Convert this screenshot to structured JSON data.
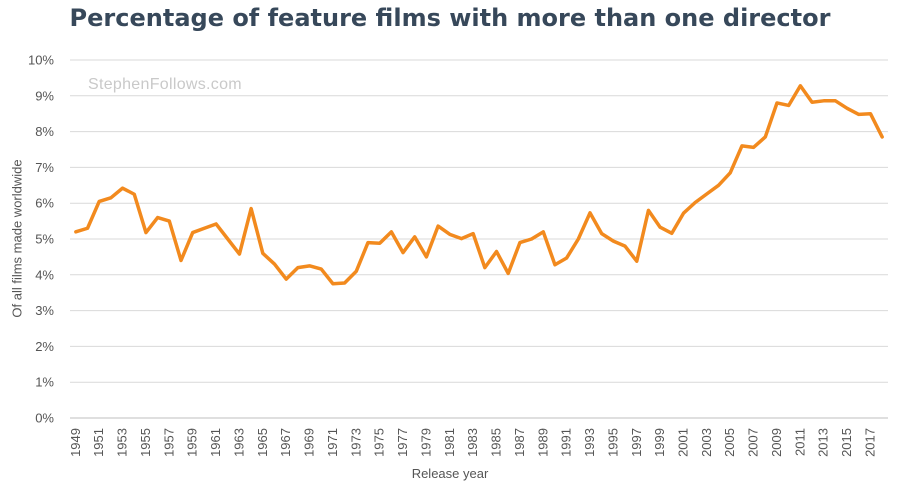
{
  "chart_data": {
    "type": "line",
    "title": "Percentage of feature films with more than one director",
    "xlabel": "Release year",
    "ylabel": "Of all films made worldwide",
    "watermark": "StephenFollows.com",
    "ylim": [
      0,
      10
    ],
    "y_ticks": [
      "0%",
      "1%",
      "2%",
      "3%",
      "4%",
      "5%",
      "6%",
      "7%",
      "8%",
      "9%",
      "10%"
    ],
    "x_tick_labels": [
      "1949",
      "1951",
      "1953",
      "1955",
      "1957",
      "1959",
      "1961",
      "1963",
      "1965",
      "1967",
      "1969",
      "1971",
      "1973",
      "1975",
      "1977",
      "1979",
      "1981",
      "1983",
      "1985",
      "1987",
      "1989",
      "1991",
      "1993",
      "1995",
      "1997",
      "1999",
      "2001",
      "2003",
      "2005",
      "2007",
      "2009",
      "2011",
      "2013",
      "2015",
      "2017"
    ],
    "grid": true,
    "line_color": "#f28a1e",
    "grid_color": "#d9d9d9",
    "title_color": "#37485a",
    "x": [
      1949,
      1950,
      1951,
      1952,
      1953,
      1954,
      1955,
      1956,
      1957,
      1958,
      1959,
      1960,
      1961,
      1962,
      1963,
      1964,
      1965,
      1966,
      1967,
      1968,
      1969,
      1970,
      1971,
      1972,
      1973,
      1974,
      1975,
      1976,
      1977,
      1978,
      1979,
      1980,
      1981,
      1982,
      1983,
      1984,
      1985,
      1986,
      1987,
      1988,
      1989,
      1990,
      1991,
      1992,
      1993,
      1994,
      1995,
      1996,
      1997,
      1998,
      1999,
      2000,
      2001,
      2002,
      2003,
      2004,
      2005,
      2006,
      2007,
      2008,
      2009,
      2010,
      2011,
      2012,
      2013,
      2014,
      2015,
      2016,
      2017,
      2018
    ],
    "series": [
      {
        "values": [
          5.2,
          5.3,
          6.05,
          6.15,
          6.42,
          6.25,
          5.18,
          5.6,
          5.5,
          4.4,
          5.18,
          5.3,
          5.42,
          5.0,
          4.58,
          5.85,
          4.6,
          4.3,
          3.88,
          4.2,
          4.25,
          4.16,
          3.75,
          3.77,
          4.1,
          4.9,
          4.88,
          5.2,
          4.62,
          5.06,
          4.5,
          5.36,
          5.13,
          5.01,
          5.15,
          4.2,
          4.65,
          4.04,
          4.9,
          5.0,
          5.2,
          4.28,
          4.47,
          5.0,
          5.73,
          5.15,
          4.94,
          4.8,
          4.38,
          5.8,
          5.33,
          5.16,
          5.72,
          6.02,
          6.26,
          6.5,
          6.85,
          7.6,
          7.56,
          7.85,
          8.8,
          8.73,
          9.28,
          8.82,
          8.86,
          8.86,
          8.65,
          8.48,
          8.5,
          7.85
        ]
      }
    ]
  }
}
